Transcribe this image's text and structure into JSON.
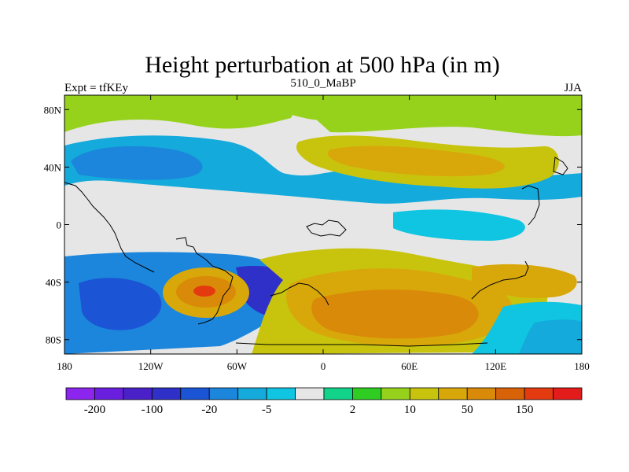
{
  "chart_data": {
    "type": "heatmap",
    "title": "Height perturbation at 500 hPa (in m)",
    "left_string": "Expt = tfKEy",
    "center_string": "510_0_MaBP",
    "right_string": "JJA",
    "x_ticks": [
      "180",
      "120W",
      "60W",
      "0",
      "60E",
      "120E",
      "180"
    ],
    "y_ticks": [
      "80N",
      "40N",
      "0",
      "40S",
      "80S"
    ],
    "colorbar": {
      "colors": [
        "#8c25ee",
        "#6a1fde",
        "#4a21c8",
        "#2f30c8",
        "#1c54d6",
        "#1b86dc",
        "#14aadb",
        "#10c5e1",
        "#e6e6e6",
        "#12d38a",
        "#2fcc22",
        "#96d21c",
        "#c8c40e",
        "#d8a80a",
        "#d98a08",
        "#d86208",
        "#e43a10",
        "#e31b1b"
      ],
      "labels": [
        "-200",
        "-100",
        "-20",
        "-5",
        "2",
        "10",
        "50",
        "150"
      ]
    },
    "regions": [
      {
        "level": 5,
        "name": "south-pacific-low-wide"
      },
      {
        "level": 4,
        "name": "south-pacific-low-core"
      },
      {
        "level": 3,
        "name": "south-pacific-low-deep"
      },
      {
        "level": 13,
        "name": "south-america-high"
      },
      {
        "level": 15,
        "name": "south-america-high-core"
      },
      {
        "level": 17,
        "name": "south-america-high-peak"
      },
      {
        "level": 12,
        "name": "southern-atlantic-indian-high"
      },
      {
        "level": 14,
        "name": "indian-ocean-high-core"
      },
      {
        "level": 6,
        "name": "northern-midlatitude-low"
      },
      {
        "level": 5,
        "name": "north-pacific-low-core"
      },
      {
        "level": 12,
        "name": "eurasia-high"
      },
      {
        "level": 9,
        "name": "arctic-band"
      },
      {
        "level": 7,
        "name": "tropical-band"
      }
    ]
  }
}
